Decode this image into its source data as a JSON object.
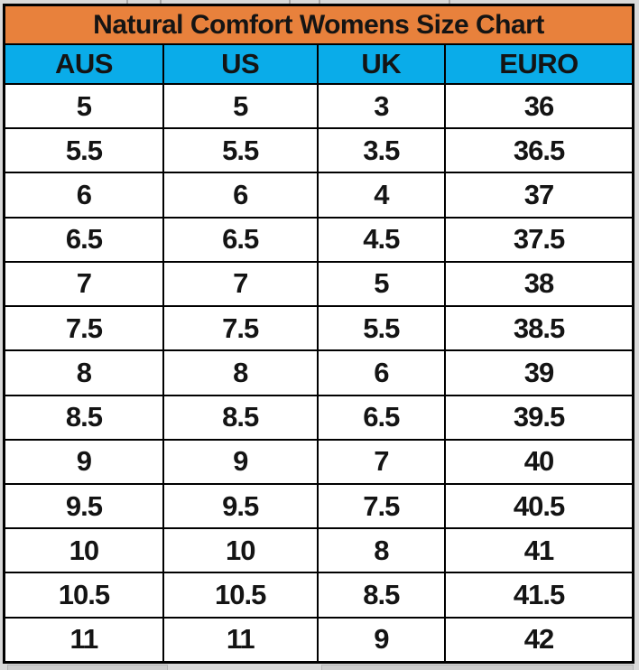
{
  "title": "Natural Comfort Womens Size Chart",
  "columns": [
    "AUS",
    "US",
    "UK",
    "EURO"
  ],
  "rows": [
    [
      "5",
      "5",
      "3",
      "36"
    ],
    [
      "5.5",
      "5.5",
      "3.5",
      "36.5"
    ],
    [
      "6",
      "6",
      "4",
      "37"
    ],
    [
      "6.5",
      "6.5",
      "4.5",
      "37.5"
    ],
    [
      "7",
      "7",
      "5",
      "38"
    ],
    [
      "7.5",
      "7.5",
      "5.5",
      "38.5"
    ],
    [
      "8",
      "8",
      "6",
      "39"
    ],
    [
      "8.5",
      "8.5",
      "6.5",
      "39.5"
    ],
    [
      "9",
      "9",
      "7",
      "40"
    ],
    [
      "9.5",
      "9.5",
      "7.5",
      "40.5"
    ],
    [
      "10",
      "10",
      "8",
      "41"
    ],
    [
      "10.5",
      "10.5",
      "8.5",
      "41.5"
    ],
    [
      "11",
      "11",
      "9",
      "42"
    ]
  ],
  "colors": {
    "title_background": "#e8813c",
    "column_header_background": "#0aace9",
    "border": "#000000",
    "page_margin": "#d9d9d9",
    "text": "#141414"
  },
  "column_width_percents": [
    25.3,
    24.5,
    20.3,
    29.9
  ]
}
